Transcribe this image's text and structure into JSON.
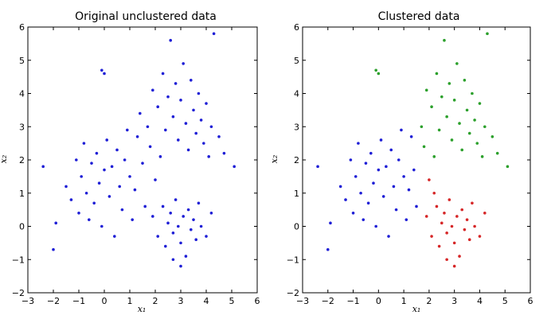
{
  "chart_data": [
    {
      "type": "scatter",
      "title": "Original unclustered data",
      "xlabel": "x₁",
      "ylabel": "x₂",
      "xlim": [
        -3,
        6
      ],
      "ylim": [
        -2,
        6
      ],
      "x_ticks": [
        "−3",
        "−2",
        "−1",
        "0",
        "1",
        "2",
        "3",
        "4",
        "5",
        "6"
      ],
      "y_ticks": [
        "−2",
        "−1",
        "0",
        "1",
        "2",
        "3",
        "4",
        "5",
        "6"
      ],
      "grid": false,
      "series": [
        {
          "color": "#1f1fd6",
          "points": [
            [
              -2.4,
              1.8
            ],
            [
              -2.0,
              -0.7
            ],
            [
              -1.9,
              0.1
            ],
            [
              -1.5,
              1.2
            ],
            [
              -1.3,
              0.8
            ],
            [
              -1.1,
              2.0
            ],
            [
              -1.0,
              0.4
            ],
            [
              -0.9,
              1.5
            ],
            [
              -0.8,
              2.5
            ],
            [
              -0.7,
              1.0
            ],
            [
              -0.6,
              0.2
            ],
            [
              -0.5,
              1.9
            ],
            [
              -0.4,
              0.7
            ],
            [
              -0.3,
              2.2
            ],
            [
              -0.2,
              1.3
            ],
            [
              -0.1,
              0.0
            ],
            [
              0.0,
              1.7
            ],
            [
              0.0,
              4.6
            ],
            [
              -0.1,
              4.7
            ],
            [
              0.1,
              2.6
            ],
            [
              0.2,
              0.9
            ],
            [
              0.3,
              1.8
            ],
            [
              0.4,
              -0.3
            ],
            [
              0.5,
              2.3
            ],
            [
              0.6,
              1.2
            ],
            [
              0.7,
              0.5
            ],
            [
              0.8,
              2.0
            ],
            [
              0.9,
              2.9
            ],
            [
              1.0,
              1.5
            ],
            [
              1.1,
              0.2
            ],
            [
              1.2,
              1.1
            ],
            [
              1.3,
              2.7
            ],
            [
              1.4,
              3.4
            ],
            [
              1.5,
              1.9
            ],
            [
              1.6,
              0.6
            ],
            [
              1.7,
              3.0
            ],
            [
              1.8,
              2.4
            ],
            [
              1.9,
              4.1
            ],
            [
              2.0,
              1.4
            ],
            [
              2.1,
              3.6
            ],
            [
              2.2,
              2.1
            ],
            [
              2.3,
              4.6
            ],
            [
              2.4,
              2.9
            ],
            [
              2.5,
              3.9
            ],
            [
              2.6,
              5.6
            ],
            [
              2.7,
              3.3
            ],
            [
              2.8,
              4.3
            ],
            [
              2.9,
              2.6
            ],
            [
              3.0,
              3.8
            ],
            [
              3.1,
              4.9
            ],
            [
              3.2,
              3.1
            ],
            [
              3.3,
              2.3
            ],
            [
              3.4,
              4.4
            ],
            [
              3.5,
              3.5
            ],
            [
              3.6,
              2.8
            ],
            [
              3.7,
              4.0
            ],
            [
              3.8,
              3.2
            ],
            [
              3.9,
              2.5
            ],
            [
              4.0,
              3.7
            ],
            [
              4.1,
              2.1
            ],
            [
              4.2,
              3.0
            ],
            [
              4.3,
              5.8
            ],
            [
              4.5,
              2.7
            ],
            [
              4.7,
              2.2
            ],
            [
              5.1,
              1.8
            ],
            [
              1.9,
              0.3
            ],
            [
              2.1,
              -0.3
            ],
            [
              2.3,
              0.6
            ],
            [
              2.4,
              -0.6
            ],
            [
              2.5,
              0.1
            ],
            [
              2.6,
              0.4
            ],
            [
              2.7,
              -0.2
            ],
            [
              2.8,
              0.8
            ],
            [
              2.9,
              0.0
            ],
            [
              3.0,
              -0.5
            ],
            [
              3.1,
              0.3
            ],
            [
              3.2,
              -0.9
            ],
            [
              3.3,
              0.5
            ],
            [
              3.4,
              -0.1
            ],
            [
              3.5,
              0.2
            ],
            [
              3.6,
              -0.4
            ],
            [
              3.7,
              0.7
            ],
            [
              3.8,
              0.0
            ],
            [
              4.0,
              -0.3
            ],
            [
              4.2,
              0.4
            ],
            [
              3.0,
              -1.2
            ],
            [
              2.7,
              -1.0
            ]
          ]
        }
      ]
    },
    {
      "type": "scatter",
      "title": "Clustered data",
      "xlabel": "x₁",
      "ylabel": "x₂",
      "xlim": [
        -3,
        6
      ],
      "ylim": [
        -2,
        6
      ],
      "x_ticks": [
        "−3",
        "−2",
        "−1",
        "0",
        "1",
        "2",
        "3",
        "4",
        "5",
        "6"
      ],
      "y_ticks": [
        "−2",
        "−1",
        "0",
        "1",
        "2",
        "3",
        "4",
        "5",
        "6"
      ],
      "grid": false,
      "series": [
        {
          "color": "#1f1fd6",
          "points": [
            [
              -2.4,
              1.8
            ],
            [
              -2.0,
              -0.7
            ],
            [
              -1.9,
              0.1
            ],
            [
              -1.5,
              1.2
            ],
            [
              -1.3,
              0.8
            ],
            [
              -1.1,
              2.0
            ],
            [
              -1.0,
              0.4
            ],
            [
              -0.9,
              1.5
            ],
            [
              -0.8,
              2.5
            ],
            [
              -0.7,
              1.0
            ],
            [
              -0.6,
              0.2
            ],
            [
              -0.5,
              1.9
            ],
            [
              -0.4,
              0.7
            ],
            [
              -0.3,
              2.2
            ],
            [
              -0.2,
              1.3
            ],
            [
              -0.1,
              0.0
            ],
            [
              0.0,
              1.7
            ],
            [
              0.1,
              2.6
            ],
            [
              0.2,
              0.9
            ],
            [
              0.3,
              1.8
            ],
            [
              0.4,
              -0.3
            ],
            [
              0.5,
              2.3
            ],
            [
              0.6,
              1.2
            ],
            [
              0.7,
              0.5
            ],
            [
              0.8,
              2.0
            ],
            [
              0.9,
              2.9
            ],
            [
              1.0,
              1.5
            ],
            [
              1.1,
              0.2
            ],
            [
              1.2,
              1.1
            ],
            [
              1.3,
              2.7
            ],
            [
              1.4,
              1.7
            ],
            [
              1.5,
              0.6
            ]
          ]
        },
        {
          "color": "#2ca02c",
          "points": [
            [
              0.0,
              4.6
            ],
            [
              -0.1,
              4.7
            ],
            [
              1.7,
              3.0
            ],
            [
              1.8,
              2.4
            ],
            [
              1.9,
              4.1
            ],
            [
              2.1,
              3.6
            ],
            [
              2.2,
              2.1
            ],
            [
              2.3,
              4.6
            ],
            [
              2.4,
              2.9
            ],
            [
              2.5,
              3.9
            ],
            [
              2.6,
              5.6
            ],
            [
              2.7,
              3.3
            ],
            [
              2.8,
              4.3
            ],
            [
              2.9,
              2.6
            ],
            [
              3.0,
              3.8
            ],
            [
              3.1,
              4.9
            ],
            [
              3.2,
              3.1
            ],
            [
              3.3,
              2.3
            ],
            [
              3.4,
              4.4
            ],
            [
              3.5,
              3.5
            ],
            [
              3.6,
              2.8
            ],
            [
              3.7,
              4.0
            ],
            [
              3.8,
              3.2
            ],
            [
              3.9,
              2.5
            ],
            [
              4.0,
              3.7
            ],
            [
              4.1,
              2.1
            ],
            [
              4.2,
              3.0
            ],
            [
              4.3,
              5.8
            ],
            [
              4.5,
              2.7
            ],
            [
              4.7,
              2.2
            ],
            [
              5.1,
              1.8
            ]
          ]
        },
        {
          "color": "#d62728",
          "points": [
            [
              1.9,
              0.3
            ],
            [
              2.1,
              -0.3
            ],
            [
              2.3,
              0.6
            ],
            [
              2.4,
              -0.6
            ],
            [
              2.5,
              0.1
            ],
            [
              2.6,
              0.4
            ],
            [
              2.7,
              -0.2
            ],
            [
              2.8,
              0.8
            ],
            [
              2.9,
              0.0
            ],
            [
              3.0,
              -0.5
            ],
            [
              3.1,
              0.3
            ],
            [
              3.2,
              -0.9
            ],
            [
              3.3,
              0.5
            ],
            [
              3.4,
              -0.1
            ],
            [
              3.5,
              0.2
            ],
            [
              3.6,
              -0.4
            ],
            [
              3.7,
              0.7
            ],
            [
              3.8,
              0.0
            ],
            [
              4.0,
              -0.3
            ],
            [
              4.2,
              0.4
            ],
            [
              3.0,
              -1.2
            ],
            [
              2.7,
              -1.0
            ],
            [
              2.0,
              1.4
            ],
            [
              2.2,
              1.0
            ]
          ]
        }
      ]
    }
  ]
}
